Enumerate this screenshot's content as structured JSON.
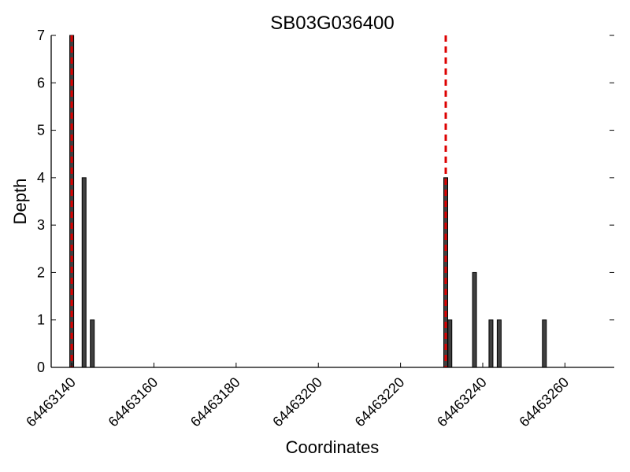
{
  "chart_data": {
    "type": "bar",
    "title": "SB03G036400",
    "xlabel": "Coordinates",
    "ylabel": "Depth",
    "xlim": [
      64463135,
      64463272
    ],
    "ylim": [
      0,
      7
    ],
    "xticks": [
      64463140,
      64463160,
      64463180,
      64463200,
      64463220,
      64463240,
      64463260
    ],
    "xtick_labels": [
      "64463140",
      "64463160",
      "64463180",
      "64463200",
      "64463220",
      "64463240",
      "64463260"
    ],
    "yticks": [
      0,
      1,
      2,
      3,
      4,
      5,
      6,
      7
    ],
    "ytick_labels": [
      "0",
      "1",
      "2",
      "3",
      "4",
      "5",
      "6",
      "7"
    ],
    "bars": {
      "x": [
        64463140,
        64463143,
        64463145,
        64463231,
        64463232,
        64463238,
        64463242,
        64463244,
        64463255
      ],
      "values": [
        7,
        4,
        1,
        4,
        1,
        2,
        1,
        1,
        1
      ],
      "color": "#404040"
    },
    "markers": {
      "x": [
        64463140,
        64463231
      ],
      "color": "#dd0000",
      "style": "dashed"
    },
    "grid": false,
    "legend": "none"
  }
}
